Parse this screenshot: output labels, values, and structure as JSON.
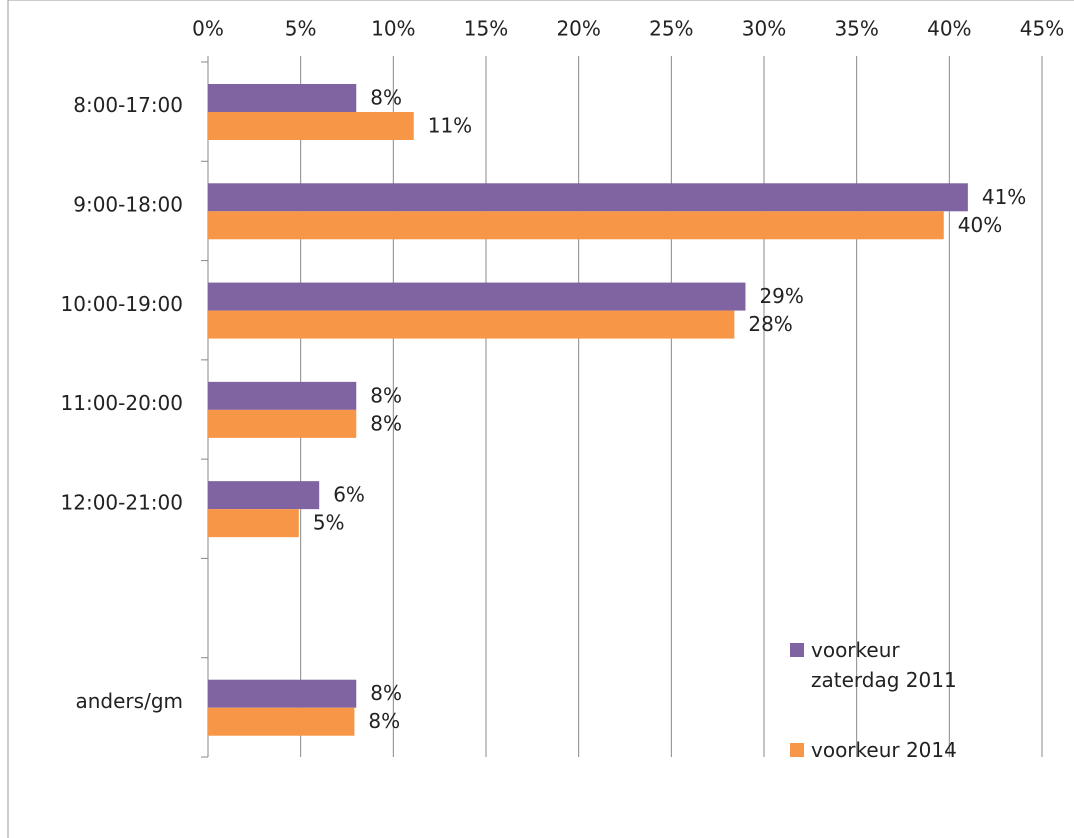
{
  "chart_data": {
    "type": "hbar",
    "categories": [
      "8:00-17:00",
      "9:00-18:00",
      "10:00-19:00",
      "11:00-20:00",
      "12:00-21:00",
      null,
      "anders/gm"
    ],
    "series": [
      {
        "name": "voorkeur zaterdag 2011",
        "color": "#8064a2",
        "values": [
          8,
          41,
          29,
          8,
          6,
          null,
          8
        ],
        "value_labels": [
          "8%",
          "41%",
          "29%",
          "8%",
          "6%",
          null,
          "8%"
        ]
      },
      {
        "name": "voorkeur 2014",
        "color": "#f79646",
        "values": [
          11.1,
          39.7,
          28.4,
          8,
          4.9,
          null,
          7.9
        ],
        "value_labels": [
          "11%",
          "40%",
          "28%",
          "8%",
          "5%",
          null,
          "8%"
        ]
      }
    ],
    "xlim": [
      0,
      45
    ],
    "xticks": [
      {
        "value": 0,
        "label": "0%"
      },
      {
        "value": 5,
        "label": "5%"
      },
      {
        "value": 10,
        "label": "10%"
      },
      {
        "value": 15,
        "label": "15%"
      },
      {
        "value": 20,
        "label": "20%"
      },
      {
        "value": 25,
        "label": "25%"
      },
      {
        "value": 30,
        "label": "30%"
      },
      {
        "value": 35,
        "label": "35%"
      },
      {
        "value": 40,
        "label": "40%"
      },
      {
        "value": 45,
        "label": "45%"
      }
    ],
    "grid": true,
    "legend": "bottom-right"
  }
}
